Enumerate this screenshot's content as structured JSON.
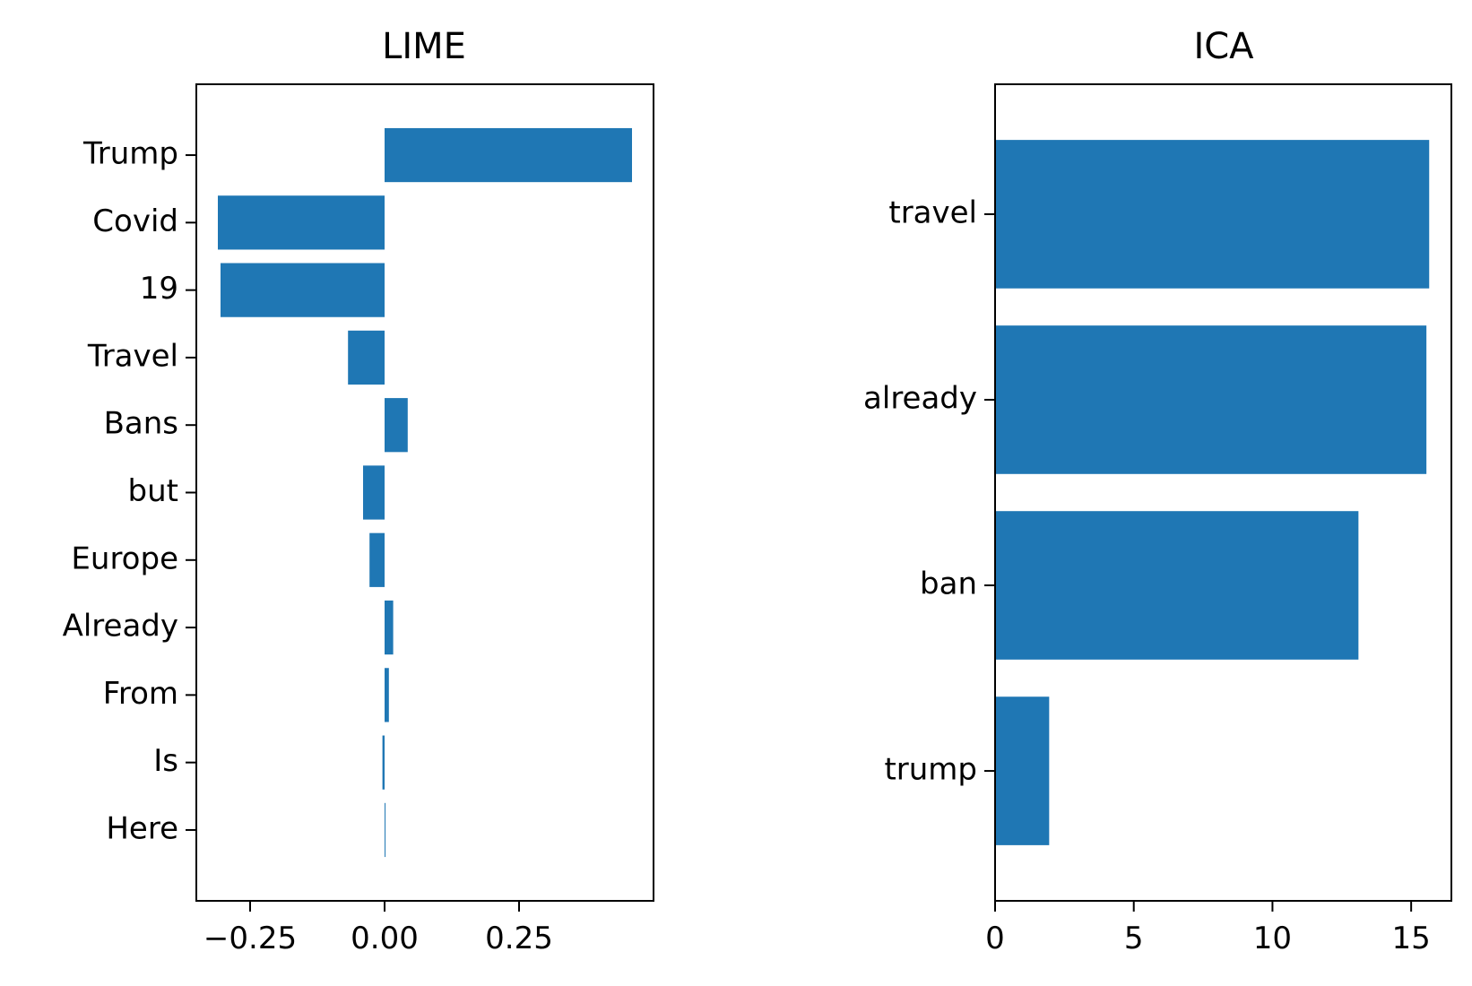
{
  "chart_data": [
    {
      "type": "bar",
      "orientation": "horizontal",
      "title": "LIME",
      "xlabel": "",
      "ylabel": "",
      "categories": [
        "Trump",
        "Covid",
        "19",
        "Travel",
        "Bans",
        "but",
        "Europe",
        "Already",
        "From",
        "Is",
        "Here"
      ],
      "values": [
        0.46,
        -0.31,
        -0.305,
        -0.068,
        0.043,
        -0.04,
        -0.028,
        0.016,
        0.008,
        -0.004,
        0.001
      ],
      "xlim": [
        -0.35,
        0.5
      ],
      "xticks": [
        -0.25,
        0.0,
        0.25
      ],
      "xtick_labels": [
        "−0.25",
        "0.00",
        "0.25"
      ],
      "grid": false,
      "color": "#1f77b4"
    },
    {
      "type": "bar",
      "orientation": "horizontal",
      "title": "ICA",
      "xlabel": "",
      "ylabel": "",
      "categories": [
        "travel",
        "already",
        "ban",
        "trump"
      ],
      "values": [
        15.65,
        15.55,
        13.1,
        1.95
      ],
      "xlim": [
        0,
        16.45
      ],
      "xticks": [
        0,
        5,
        10,
        15
      ],
      "xtick_labels": [
        "0",
        "5",
        "10",
        "15"
      ],
      "grid": false,
      "color": "#1f77b4"
    }
  ]
}
